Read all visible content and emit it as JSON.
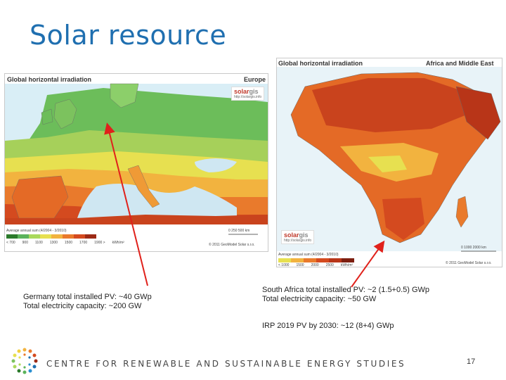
{
  "slide": {
    "title": "Solar resource",
    "page_number": "17",
    "footer": "CENTRE FOR RENEWABLE AND SUSTAINABLE ENERGY STUDIES"
  },
  "europe_map": {
    "title": "Global horizontal irradiation",
    "region": "Europe",
    "logo_text": "solar",
    "logo_text2": "gis",
    "logo_url": "http://solargis.info",
    "legend_title": "Average annual sum (4/2004 - 3/2010)",
    "legend_ticks": [
      "< 700",
      "900",
      "1100",
      "1300",
      "1500",
      "1700",
      "1900 >",
      "kWh/m²"
    ],
    "scale": "0   250   500 km",
    "copyright": "© 2011 GeoModel Solar s.r.o."
  },
  "africa_map": {
    "title": "Global horizontal irradiation",
    "region": "Africa and Middle East",
    "logo_text": "solar",
    "logo_text2": "gis",
    "logo_url": "http://solargis.info",
    "legend_title": "Average annual sum (4/2004 - 3/2010)",
    "legend_ticks": [
      "< 1000",
      "1500",
      "2000",
      "2500",
      "kWh/m²"
    ],
    "scale": "0   1000   2000 km",
    "copyright": "© 2011 GeoModel Solar s.r.o."
  },
  "captions": {
    "germany_line1": "Germany total installed PV: ~40 GWp",
    "germany_line2": "Total electricity capacity: ~200 GW",
    "sa_line1": "South Africa total installed PV: ~2 (1.5+0.5) GWp",
    "sa_line2": "Total electricity capacity: ~50 GW",
    "irp": "IRP 2019 PV by 2030: ~12 (8+4) GWp"
  },
  "colors": {
    "title": "#1f6fb0",
    "arrow": "#e0211b"
  }
}
